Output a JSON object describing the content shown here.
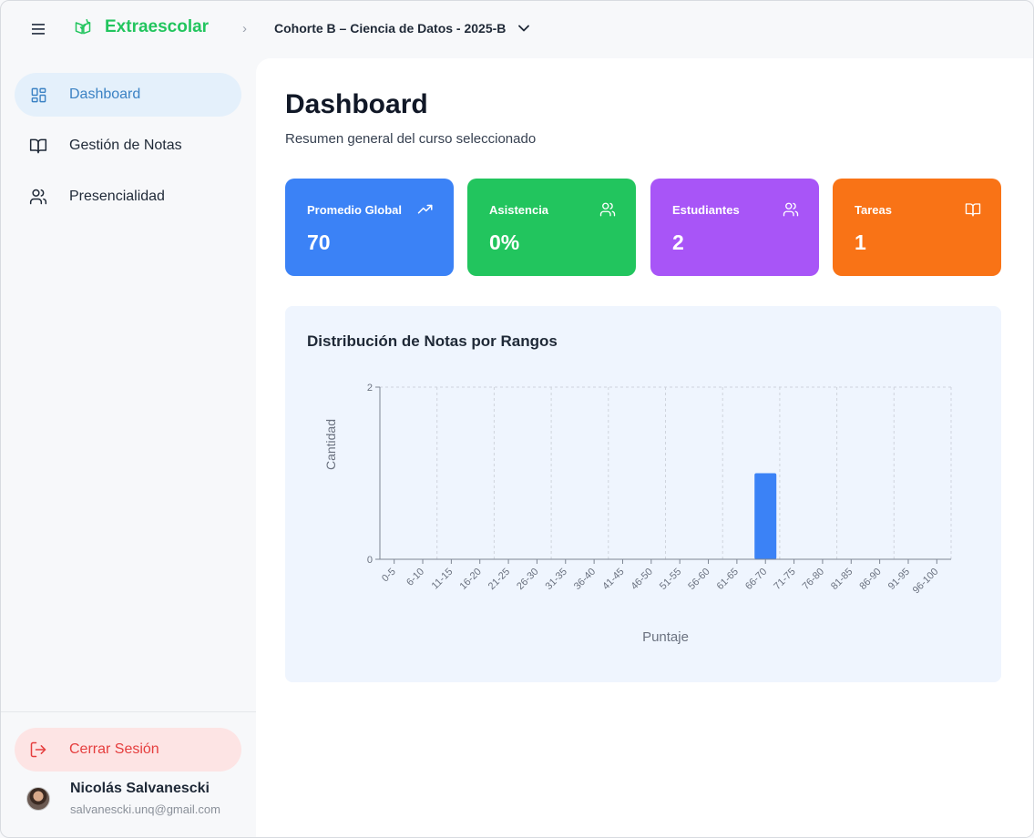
{
  "app": {
    "brand": "Extraescolar",
    "cohort": "Cohorte B – Ciencia de Datos - 2025-B"
  },
  "icons": {
    "menu": "menu-icon",
    "brand": "book-check-icon",
    "breadcrumb": "chevron-right-icon",
    "cohort_toggle": "chevron-down-icon"
  },
  "sidebar": {
    "items": [
      {
        "label": "Dashboard",
        "icon": "grid-icon",
        "active": true
      },
      {
        "label": "Gestión de Notas",
        "icon": "book-icon",
        "active": false
      },
      {
        "label": "Presencialidad",
        "icon": "users-icon",
        "active": false
      }
    ],
    "logout_label": "Cerrar Sesión",
    "user": {
      "name": "Nicolás Salvanescki",
      "email": "salvanescki.unq@gmail.com"
    }
  },
  "page": {
    "title": "Dashboard",
    "subtitle": "Resumen general del curso seleccionado"
  },
  "cards": [
    {
      "label": "Promedio Global",
      "value": "70",
      "color": "#3b82f6",
      "icon": "trending-up-icon"
    },
    {
      "label": "Asistencia",
      "value": "0%",
      "color": "#22c55e",
      "icon": "users-icon"
    },
    {
      "label": "Estudiantes",
      "value": "2",
      "color": "#a855f7",
      "icon": "users-icon"
    },
    {
      "label": "Tareas",
      "value": "1",
      "color": "#f97316",
      "icon": "book-open-icon"
    }
  ],
  "chart": {
    "title": "Distribución de Notas por Rangos"
  },
  "chart_data": {
    "type": "bar",
    "categories": [
      "0-5",
      "6-10",
      "11-15",
      "16-20",
      "21-25",
      "26-30",
      "31-35",
      "36-40",
      "41-45",
      "46-50",
      "51-55",
      "56-60",
      "61-65",
      "66-70",
      "71-75",
      "76-80",
      "81-85",
      "86-90",
      "91-95",
      "96-100"
    ],
    "values": [
      0,
      0,
      0,
      0,
      0,
      0,
      0,
      0,
      0,
      0,
      0,
      0,
      0,
      1,
      0,
      0,
      0,
      0,
      0,
      0
    ],
    "xlabel": "Puntaje",
    "ylabel": "Cantidad",
    "ylim": [
      0,
      2
    ],
    "yticks": [
      0,
      2
    ],
    "bar_color": "#3b82f6",
    "grid": true
  }
}
